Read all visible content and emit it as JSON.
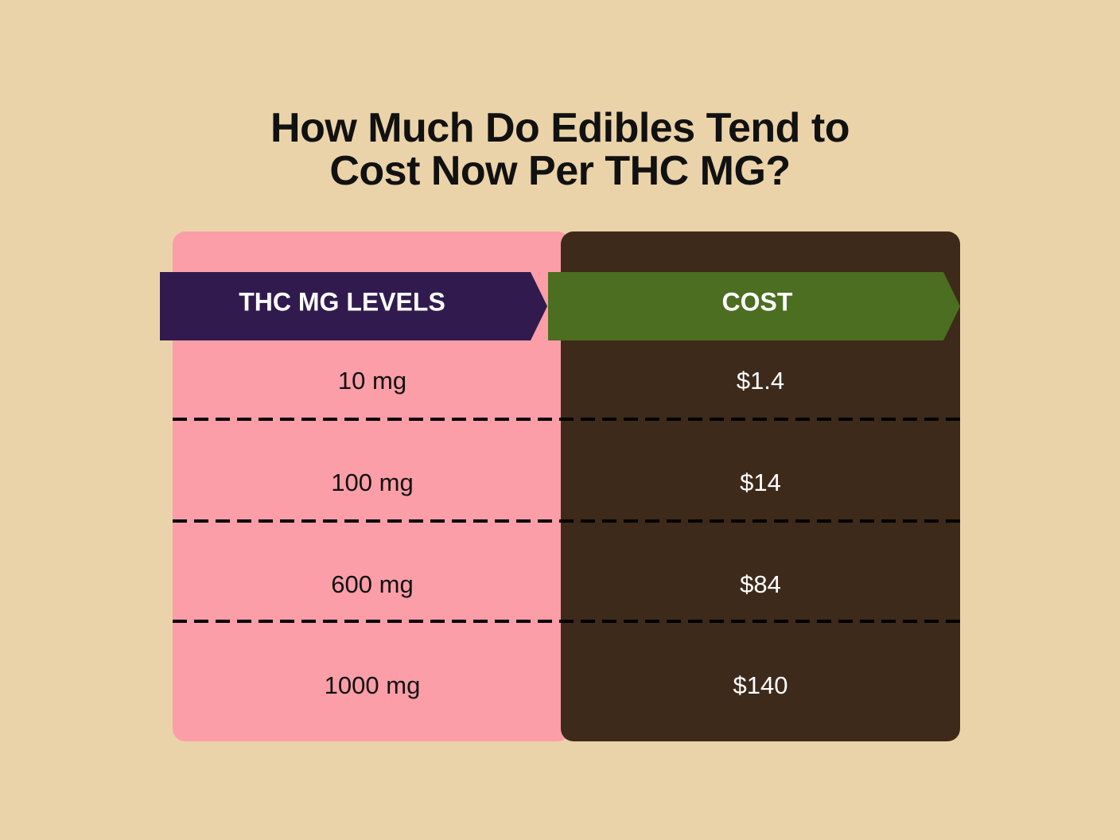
{
  "title": "How Much Do Edibles Tend to Cost Now Per THC MG?",
  "table": {
    "header": [
      "THC MG LEVELS",
      "COST"
    ],
    "rows": [
      [
        "10 mg",
        "$1.4"
      ],
      [
        "100 mg",
        "$14"
      ],
      [
        "600 mg",
        "$84"
      ],
      [
        "1000 mg",
        "$140"
      ]
    ]
  }
}
